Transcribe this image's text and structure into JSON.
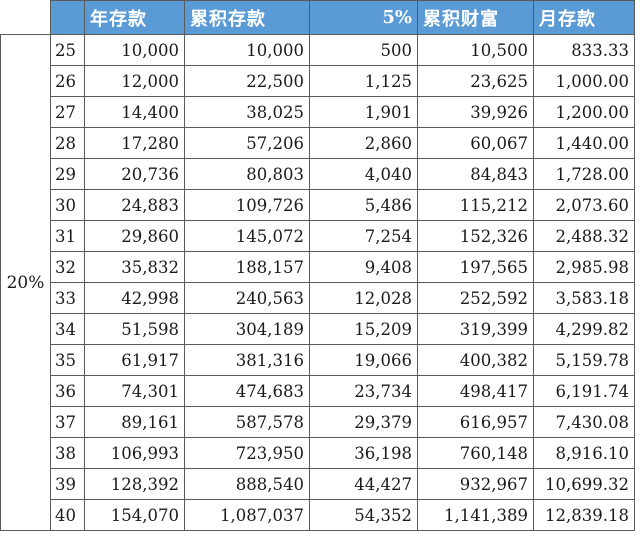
{
  "headers": {
    "rate": "",
    "age": "",
    "annual_deposit": "年存款",
    "cumulative_deposit": "累积存款",
    "interest": "5%",
    "cumulative_wealth": "累积财富",
    "monthly_deposit": "月存款"
  },
  "rate_label": "20%",
  "rows": [
    {
      "age": "25",
      "annual": "10,000",
      "cumulative": "10,000",
      "interest": "500",
      "wealth": "10,500",
      "monthly": "833.33"
    },
    {
      "age": "26",
      "annual": "12,000",
      "cumulative": "22,500",
      "interest": "1,125",
      "wealth": "23,625",
      "monthly": "1,000.00"
    },
    {
      "age": "27",
      "annual": "14,400",
      "cumulative": "38,025",
      "interest": "1,901",
      "wealth": "39,926",
      "monthly": "1,200.00"
    },
    {
      "age": "28",
      "annual": "17,280",
      "cumulative": "57,206",
      "interest": "2,860",
      "wealth": "60,067",
      "monthly": "1,440.00"
    },
    {
      "age": "29",
      "annual": "20,736",
      "cumulative": "80,803",
      "interest": "4,040",
      "wealth": "84,843",
      "monthly": "1,728.00"
    },
    {
      "age": "30",
      "annual": "24,883",
      "cumulative": "109,726",
      "interest": "5,486",
      "wealth": "115,212",
      "monthly": "2,073.60"
    },
    {
      "age": "31",
      "annual": "29,860",
      "cumulative": "145,072",
      "interest": "7,254",
      "wealth": "152,326",
      "monthly": "2,488.32"
    },
    {
      "age": "32",
      "annual": "35,832",
      "cumulative": "188,157",
      "interest": "9,408",
      "wealth": "197,565",
      "monthly": "2,985.98"
    },
    {
      "age": "33",
      "annual": "42,998",
      "cumulative": "240,563",
      "interest": "12,028",
      "wealth": "252,592",
      "monthly": "3,583.18"
    },
    {
      "age": "34",
      "annual": "51,598",
      "cumulative": "304,189",
      "interest": "15,209",
      "wealth": "319,399",
      "monthly": "4,299.82"
    },
    {
      "age": "35",
      "annual": "61,917",
      "cumulative": "381,316",
      "interest": "19,066",
      "wealth": "400,382",
      "monthly": "5,159.78"
    },
    {
      "age": "36",
      "annual": "74,301",
      "cumulative": "474,683",
      "interest": "23,734",
      "wealth": "498,417",
      "monthly": "6,191.74"
    },
    {
      "age": "37",
      "annual": "89,161",
      "cumulative": "587,578",
      "interest": "29,379",
      "wealth": "616,957",
      "monthly": "7,430.08"
    },
    {
      "age": "38",
      "annual": "106,993",
      "cumulative": "723,950",
      "interest": "36,198",
      "wealth": "760,148",
      "monthly": "8,916.10"
    },
    {
      "age": "39",
      "annual": "128,392",
      "cumulative": "888,540",
      "interest": "44,427",
      "wealth": "932,967",
      "monthly": "10,699.32"
    },
    {
      "age": "40",
      "annual": "154,070",
      "cumulative": "1,087,037",
      "interest": "54,352",
      "wealth": "1,141,389",
      "monthly": "12,839.18"
    }
  ]
}
